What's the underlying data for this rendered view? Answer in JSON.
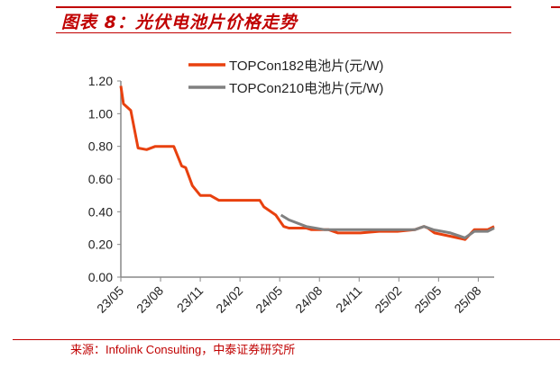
{
  "title": "图表 8：光伏电池片价格走势",
  "source": "来源：Infolink Consulting，中泰证券研究所",
  "chart_data": {
    "type": "line",
    "title": "光伏电池片价格走势",
    "xlabel": "",
    "ylabel": "",
    "ylim": [
      0,
      1.2
    ],
    "yticks": [
      "0.00",
      "0.20",
      "0.40",
      "0.60",
      "0.80",
      "1.00",
      "1.20"
    ],
    "xlim": [
      0,
      28.2
    ],
    "x_unit": "months since 23/05",
    "xticks": [
      "23/05",
      "23/08",
      "23/11",
      "24/02",
      "24/05",
      "24/08",
      "24/11",
      "25/02",
      "25/05",
      "25/08"
    ],
    "legend": "top",
    "series": [
      {
        "name": "TOPCon182电池片(元/W)",
        "color": "#e8410f",
        "x": [
          0,
          0.2,
          0.75,
          1.3,
          1.95,
          2.6,
          4.0,
          4.6,
          4.9,
          5.4,
          6.0,
          6.75,
          7.4,
          10.5,
          10.8,
          11.7,
          12.3,
          12.7,
          14.0,
          14.4,
          15.7,
          16.4,
          18.1,
          19.5,
          20.9,
          22.2,
          22.9,
          23.2,
          23.7,
          24.9,
          26.0,
          26.7,
          27.7,
          28.2
        ],
        "y": [
          1.17,
          1.06,
          1.02,
          0.79,
          0.78,
          0.8,
          0.8,
          0.68,
          0.67,
          0.56,
          0.5,
          0.5,
          0.47,
          0.47,
          0.43,
          0.38,
          0.31,
          0.3,
          0.3,
          0.29,
          0.29,
          0.27,
          0.27,
          0.28,
          0.28,
          0.29,
          0.31,
          0.3,
          0.27,
          0.25,
          0.23,
          0.29,
          0.29,
          0.31
        ]
      },
      {
        "name": "TOPCon210电池片(元/W)",
        "color": "#808080",
        "x": [
          12.1,
          12.7,
          14.0,
          15.4,
          22.2,
          22.9,
          23.6,
          24.9,
          26.0,
          26.7,
          27.7,
          28.2
        ],
        "y": [
          0.38,
          0.35,
          0.31,
          0.29,
          0.29,
          0.31,
          0.29,
          0.27,
          0.24,
          0.28,
          0.28,
          0.3
        ]
      }
    ]
  }
}
